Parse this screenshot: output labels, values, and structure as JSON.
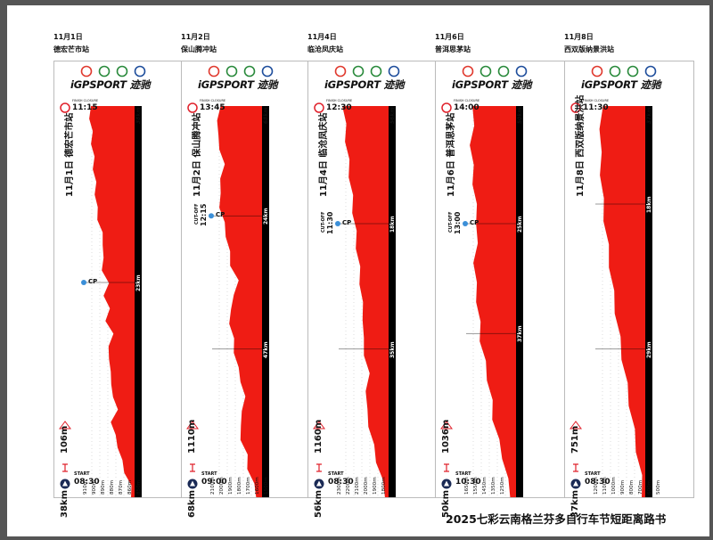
{
  "document": {
    "title": "2025七彩云南格兰芬多自行车节短距离路书"
  },
  "brand": "iGPSPORT 迹驰",
  "labels": {
    "finish_closure": "FINISH CLOSURE",
    "start": "START",
    "cutoff": "CUT-OFF",
    "cp": "CP"
  },
  "stages": [
    {
      "date": "11月1日",
      "venue": "德宏芒市站",
      "title": "11月1日 德宏芒市站",
      "finish_time": "11:15",
      "start_time": "08:30",
      "distance": "38km",
      "climb": "106m",
      "total_dist_label": "38km",
      "y_ticks": [
        "910m",
        "900m",
        "890m",
        "880m",
        "870m",
        "860m",
        "850m"
      ],
      "segments": [
        "23km"
      ],
      "has_cutoff": false,
      "cutoff_time": "",
      "cp_shown": true
    },
    {
      "date": "11月2日",
      "venue": "保山腾冲站",
      "title": "11月2日 保山腾冲站",
      "finish_time": "13:45",
      "start_time": "09:00",
      "distance": "68km",
      "climb": "1110m",
      "total_dist_label": "68km",
      "y_ticks": [
        "2100m",
        "2000m",
        "1900m",
        "1800m",
        "1700m",
        "1600m",
        "1500m"
      ],
      "segments": [
        "47km",
        "24km"
      ],
      "has_cutoff": true,
      "cutoff_time": "12:15",
      "cp_shown": true
    },
    {
      "date": "11月4日",
      "venue": "临沧凤庆站",
      "title": "11月4日 临沧凤庆站",
      "finish_time": "12:30",
      "start_time": "08:30",
      "distance": "56km",
      "climb": "1160m",
      "total_dist_label": "56km",
      "y_ticks": [
        "2300m",
        "2200m",
        "2100m",
        "2000m",
        "1900m",
        "1800m"
      ],
      "segments": [
        "35km",
        "18km"
      ],
      "has_cutoff": true,
      "cutoff_time": "11:30",
      "cp_shown": true
    },
    {
      "date": "11月6日",
      "venue": "普洱思茅站",
      "title": "11月6日 普洱思茅站",
      "finish_time": "14:00",
      "start_time": "10:30",
      "distance": "50km",
      "climb": "1036m",
      "total_dist_label": "50km",
      "y_ticks": [
        "1650m",
        "1550m",
        "1450m",
        "1350m",
        "1250m"
      ],
      "segments": [
        "37km",
        "25km"
      ],
      "has_cutoff": true,
      "cutoff_time": "13:00",
      "cp_shown": true
    },
    {
      "date": "11月8日",
      "venue": "西双版纳景洪站",
      "title": "11月8日 西双版纳景洪站",
      "finish_time": "11:30",
      "start_time": "08:30",
      "distance": "37km",
      "climb": "751m",
      "total_dist_label": "37km",
      "y_ticks": [
        "1200m",
        "1100m",
        "1000m",
        "900m",
        "800m",
        "700m",
        "600m",
        "500m"
      ],
      "segments": [
        "29km",
        "18km"
      ],
      "has_cutoff": false,
      "cutoff_time": "",
      "cp_shown": false
    }
  ]
}
